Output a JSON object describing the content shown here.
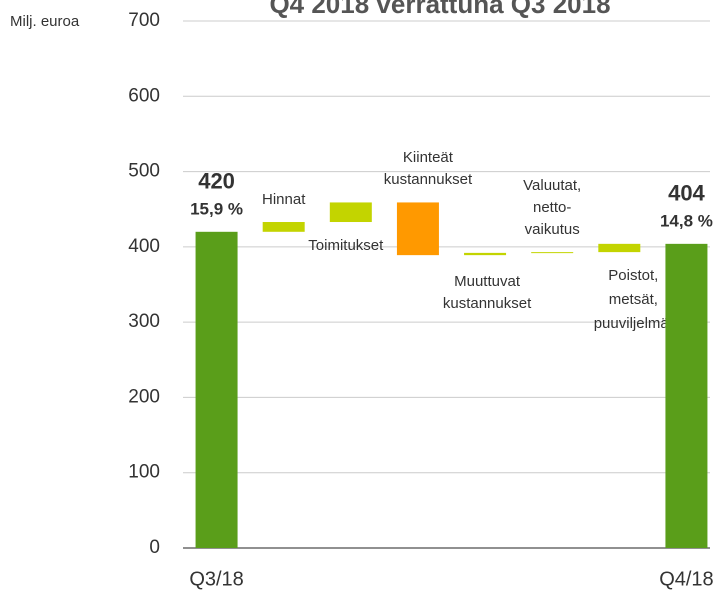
{
  "chart_data": {
    "type": "waterfall",
    "title": "Q4 2018 verrattuna Q3 2018",
    "y_label": "Milj. euroa",
    "categories": [
      "Q3/18",
      "Hinnat",
      "Toimitukset",
      [
        "Kiinteät",
        "kustannukset"
      ],
      [
        "Muuttuvat",
        "kustannukset"
      ],
      [
        "Valuutat,",
        "netto-",
        "vaikutus"
      ],
      [
        "Poistot,",
        "metsät,",
        "puuviljelmät"
      ],
      "Q4/18"
    ],
    "values": [
      420,
      13,
      26,
      -70,
      3,
      1,
      11,
      404
    ],
    "annotations": [
      [
        "420",
        "15,9 %"
      ],
      [
        "404",
        "14,8 %"
      ]
    ],
    "colors": {
      "total": "#5a9e1a",
      "increase": "#c3d400",
      "decrease": "#ff9900"
    },
    "ylim": [
      0,
      700
    ],
    "yticks": [
      0,
      100,
      200,
      300,
      400,
      500,
      600,
      700
    ],
    "grid": true
  }
}
